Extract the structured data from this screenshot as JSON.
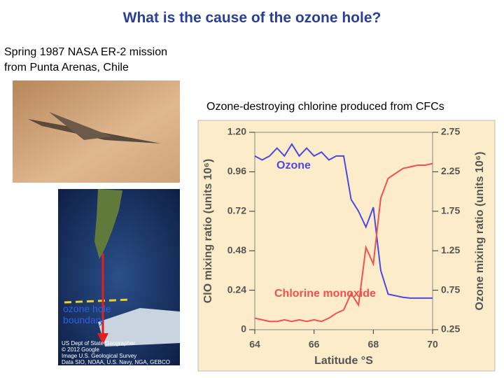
{
  "title": "What is the cause of the ozone hole?",
  "mission_lines": [
    "Spring 1987 NASA ER-2 mission",
    "from Punta Arenas, Chile"
  ],
  "chart_caption": "Ozone-destroying chlorine produced from CFCs",
  "map_label": "ozone hole boundary",
  "map_credits": [
    "US Dept of State Geographer",
    "© 2012 Google",
    "Image U.S. Geological Survey",
    "Data SIO, NOAA, U.S. Navy, NGA, GEBCO"
  ],
  "chart_data": {
    "type": "line",
    "x_label": "Latitude °S",
    "y_label": "ClO mixing ratio (units 10⁶)",
    "y2_label": "Ozone mixing ratio (units 10⁶)",
    "x": [
      64,
      64.25,
      64.5,
      64.75,
      65,
      65.25,
      65.5,
      65.75,
      66,
      66.25,
      66.5,
      66.75,
      67,
      67.25,
      67.5,
      67.75,
      68,
      68.25,
      68.5,
      68.75,
      69,
      69.25,
      69.5,
      69.75,
      70
    ],
    "xlim": [
      64,
      70
    ],
    "xticks": [
      64,
      66,
      68,
      70
    ],
    "ylim": [
      0,
      1.2
    ],
    "yticks": [
      0,
      0.24,
      0.48,
      0.72,
      0.96,
      {
        "value": 1.2,
        "label": "1.20"
      }
    ],
    "y2lim": [
      0.25,
      2.75
    ],
    "y2ticks": [
      0.25,
      0.75,
      1.25,
      1.75,
      2.25,
      2.75
    ],
    "series": [
      {
        "name": "Ozone",
        "color": "#4a4ae0",
        "axis": "y2",
        "values": [
          2.45,
          2.4,
          2.45,
          2.55,
          2.45,
          2.6,
          2.45,
          2.55,
          2.45,
          2.5,
          2.4,
          2.45,
          2.45,
          1.9,
          1.75,
          1.55,
          1.8,
          1.0,
          0.7,
          0.68,
          0.66,
          0.65,
          0.65,
          0.65,
          0.65
        ]
      },
      {
        "name": "Chlorine monoxide",
        "color": "#f05050",
        "values": [
          0.07,
          0.06,
          0.05,
          0.05,
          0.06,
          0.05,
          0.06,
          0.05,
          0.06,
          0.05,
          0.07,
          0.1,
          0.12,
          0.22,
          0.15,
          0.5,
          0.4,
          0.8,
          0.92,
          0.95,
          0.98,
          0.99,
          1.0,
          1.0,
          1.01
        ]
      }
    ]
  }
}
